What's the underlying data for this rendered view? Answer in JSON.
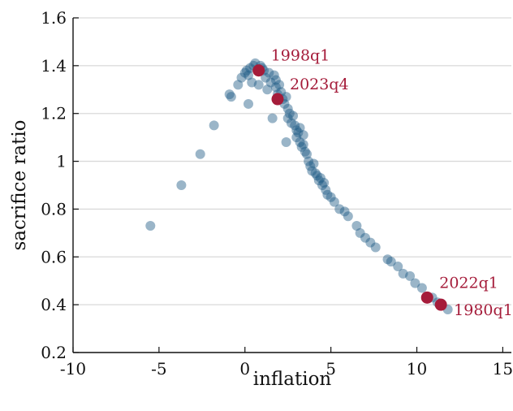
{
  "colors": {
    "points": "#1f5a85",
    "highlight": "#a51c3a",
    "grid": "#d9d9d9",
    "axis": "#111111"
  },
  "chart_data": {
    "type": "scatter",
    "title": "",
    "xlabel": "inflation",
    "ylabel": "sacrifice ratio",
    "xlim": [
      -10,
      15.5
    ],
    "ylim": [
      0.2,
      1.6
    ],
    "xticks": [
      -10,
      -5,
      0,
      5,
      10,
      15
    ],
    "xtick_labels": [
      "-10",
      "-5",
      "0",
      "5",
      "10",
      "15"
    ],
    "yticks": [
      0.2,
      0.4,
      0.6,
      0.8,
      1.0,
      1.2,
      1.4,
      1.6
    ],
    "ytick_labels": [
      "0.2",
      "0.4",
      "0.6",
      "0.8",
      "1",
      "1.2",
      "1.4",
      "1.6"
    ],
    "grid": "horizontal",
    "legend": "none",
    "points": [
      {
        "x": -5.5,
        "y": 0.73
      },
      {
        "x": -3.7,
        "y": 0.9
      },
      {
        "x": -2.6,
        "y": 1.03
      },
      {
        "x": -1.8,
        "y": 1.15
      },
      {
        "x": -0.9,
        "y": 1.28
      },
      {
        "x": -0.8,
        "y": 1.27
      },
      {
        "x": -0.4,
        "y": 1.32
      },
      {
        "x": -0.2,
        "y": 1.35
      },
      {
        "x": 0.0,
        "y": 1.37
      },
      {
        "x": 0.1,
        "y": 1.38
      },
      {
        "x": 0.2,
        "y": 1.36
      },
      {
        "x": 0.2,
        "y": 1.24
      },
      {
        "x": 0.3,
        "y": 1.39
      },
      {
        "x": 0.4,
        "y": 1.33
      },
      {
        "x": 0.5,
        "y": 1.4
      },
      {
        "x": 0.6,
        "y": 1.41
      },
      {
        "x": 0.8,
        "y": 1.32
      },
      {
        "x": 0.9,
        "y": 1.4
      },
      {
        "x": 1.0,
        "y": 1.39
      },
      {
        "x": 1.1,
        "y": 1.38
      },
      {
        "x": 1.2,
        "y": 1.35
      },
      {
        "x": 1.3,
        "y": 1.3
      },
      {
        "x": 1.4,
        "y": 1.37
      },
      {
        "x": 1.5,
        "y": 1.33
      },
      {
        "x": 1.6,
        "y": 1.18
      },
      {
        "x": 1.7,
        "y": 1.36
      },
      {
        "x": 1.8,
        "y": 1.34
      },
      {
        "x": 1.8,
        "y": 1.31
      },
      {
        "x": 1.9,
        "y": 1.28
      },
      {
        "x": 2.0,
        "y": 1.32
      },
      {
        "x": 2.1,
        "y": 1.29
      },
      {
        "x": 2.2,
        "y": 1.26
      },
      {
        "x": 2.3,
        "y": 1.24
      },
      {
        "x": 2.4,
        "y": 1.08
      },
      {
        "x": 2.4,
        "y": 1.27
      },
      {
        "x": 2.5,
        "y": 1.22
      },
      {
        "x": 2.5,
        "y": 1.18
      },
      {
        "x": 2.6,
        "y": 1.2
      },
      {
        "x": 2.7,
        "y": 1.16
      },
      {
        "x": 2.8,
        "y": 1.19
      },
      {
        "x": 2.9,
        "y": 1.15
      },
      {
        "x": 3.0,
        "y": 1.13
      },
      {
        "x": 3.0,
        "y": 1.1
      },
      {
        "x": 3.1,
        "y": 1.12
      },
      {
        "x": 3.2,
        "y": 1.08
      },
      {
        "x": 3.2,
        "y": 1.14
      },
      {
        "x": 3.3,
        "y": 1.06
      },
      {
        "x": 3.4,
        "y": 1.11
      },
      {
        "x": 3.4,
        "y": 1.07
      },
      {
        "x": 3.5,
        "y": 1.04
      },
      {
        "x": 3.6,
        "y": 1.03
      },
      {
        "x": 3.7,
        "y": 1.0
      },
      {
        "x": 3.8,
        "y": 0.98
      },
      {
        "x": 3.9,
        "y": 0.96
      },
      {
        "x": 4.0,
        "y": 0.99
      },
      {
        "x": 4.1,
        "y": 0.95
      },
      {
        "x": 4.2,
        "y": 0.94
      },
      {
        "x": 4.3,
        "y": 0.92
      },
      {
        "x": 4.4,
        "y": 0.93
      },
      {
        "x": 4.5,
        "y": 0.9
      },
      {
        "x": 4.6,
        "y": 0.91
      },
      {
        "x": 4.7,
        "y": 0.88
      },
      {
        "x": 4.8,
        "y": 0.86
      },
      {
        "x": 5.0,
        "y": 0.85
      },
      {
        "x": 5.2,
        "y": 0.83
      },
      {
        "x": 5.5,
        "y": 0.8
      },
      {
        "x": 5.8,
        "y": 0.79
      },
      {
        "x": 6.0,
        "y": 0.77
      },
      {
        "x": 6.5,
        "y": 0.73
      },
      {
        "x": 6.7,
        "y": 0.7
      },
      {
        "x": 7.0,
        "y": 0.68
      },
      {
        "x": 7.3,
        "y": 0.66
      },
      {
        "x": 7.6,
        "y": 0.64
      },
      {
        "x": 8.3,
        "y": 0.59
      },
      {
        "x": 8.5,
        "y": 0.58
      },
      {
        "x": 8.9,
        "y": 0.56
      },
      {
        "x": 9.2,
        "y": 0.53
      },
      {
        "x": 9.6,
        "y": 0.52
      },
      {
        "x": 9.9,
        "y": 0.49
      },
      {
        "x": 10.3,
        "y": 0.47
      },
      {
        "x": 10.9,
        "y": 0.43
      },
      {
        "x": 11.2,
        "y": 0.41
      },
      {
        "x": 11.8,
        "y": 0.38
      }
    ],
    "highlights": [
      {
        "label": "1998q1",
        "x": 0.8,
        "y": 1.38,
        "label_pos": "above-right"
      },
      {
        "label": "2023q4",
        "x": 1.9,
        "y": 1.26,
        "label_pos": "above-right"
      },
      {
        "label": "2022q1",
        "x": 10.6,
        "y": 0.43,
        "label_pos": "above-right"
      },
      {
        "label": "1980q1",
        "x": 11.4,
        "y": 0.4,
        "label_pos": "right"
      }
    ]
  }
}
